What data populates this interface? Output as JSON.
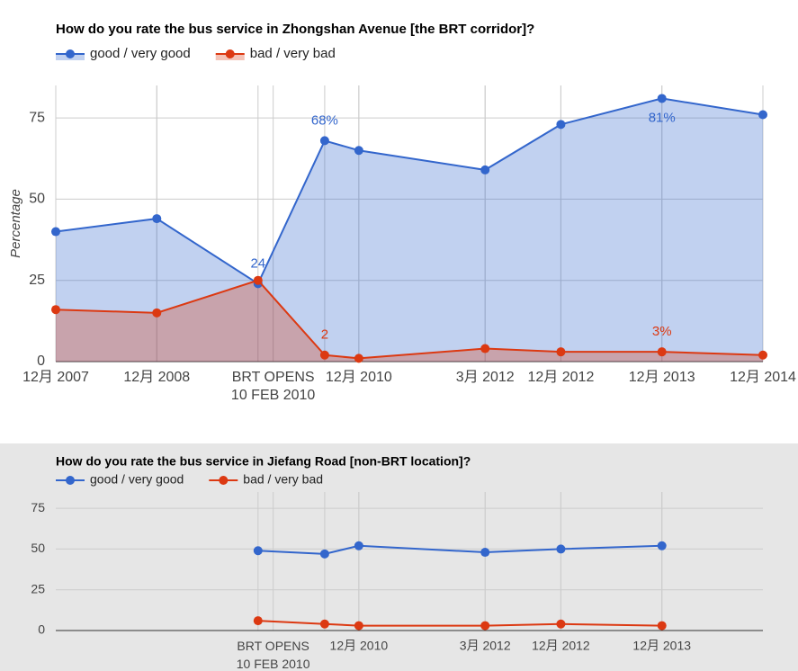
{
  "chart_data": [
    {
      "type": "area",
      "title": "How do you rate the bus service in Zhongshan Avenue [the BRT corridor]?",
      "y_label": "Percentage",
      "x": [
        2007.958,
        2008.958,
        2009.96,
        2010.62,
        2010.958,
        2012.208,
        2012.958,
        2013.958,
        2014.958
      ],
      "xlim": [
        2007.958,
        2014.958
      ],
      "xticks": [
        {
          "value": 2007.958,
          "label": "12月 2007"
        },
        {
          "value": 2008.958,
          "label": "12月 2008"
        },
        {
          "value": 2010.11,
          "label": "BRT OPENS\n10 FEB 2010"
        },
        {
          "value": 2010.958,
          "label": "12月 2010"
        },
        {
          "value": 2012.208,
          "label": "3月 2012"
        },
        {
          "value": 2012.958,
          "label": "12月 2012"
        },
        {
          "value": 2013.958,
          "label": "12月 2013"
        },
        {
          "value": 2014.958,
          "label": "12月 2014"
        }
      ],
      "ylim": [
        0,
        85
      ],
      "yticks": [
        0,
        25,
        50,
        75
      ],
      "grid": true,
      "series": [
        {
          "name": "good / very good",
          "color": "#3366cc",
          "values": [
            40,
            44,
            24,
            68,
            65,
            59,
            73,
            81,
            76
          ],
          "value_labels": [
            null,
            null,
            "24",
            "68%",
            null,
            null,
            null,
            "81%",
            null
          ]
        },
        {
          "name": "bad / very bad",
          "color": "#dc3912",
          "values": [
            16,
            15,
            25,
            2,
            1,
            4,
            3,
            3,
            2
          ],
          "value_labels": [
            null,
            null,
            null,
            "2",
            null,
            null,
            null,
            "3%",
            null
          ]
        }
      ]
    },
    {
      "type": "line",
      "title": "How do you rate the bus service in Jiefang Road [non-BRT location]?",
      "x": [
        2009.96,
        2010.62,
        2010.958,
        2012.208,
        2012.958,
        2013.958
      ],
      "xlim": [
        2007.958,
        2014.958
      ],
      "xticks": [
        {
          "value": 2010.11,
          "label": "BRT OPENS\n10 FEB 2010"
        },
        {
          "value": 2010.958,
          "label": "12月 2010"
        },
        {
          "value": 2012.208,
          "label": "3月 2012"
        },
        {
          "value": 2012.958,
          "label": "12月 2012"
        },
        {
          "value": 2013.958,
          "label": "12月 2013"
        }
      ],
      "ylim": [
        0,
        85
      ],
      "yticks": [
        0,
        25,
        50,
        75
      ],
      "grid": true,
      "series": [
        {
          "name": "good / very good",
          "color": "#3366cc",
          "values": [
            49,
            47,
            52,
            48,
            50,
            52
          ]
        },
        {
          "name": "bad / very bad",
          "color": "#dc3912",
          "values": [
            6,
            4,
            3,
            3,
            4,
            3
          ]
        }
      ]
    }
  ]
}
